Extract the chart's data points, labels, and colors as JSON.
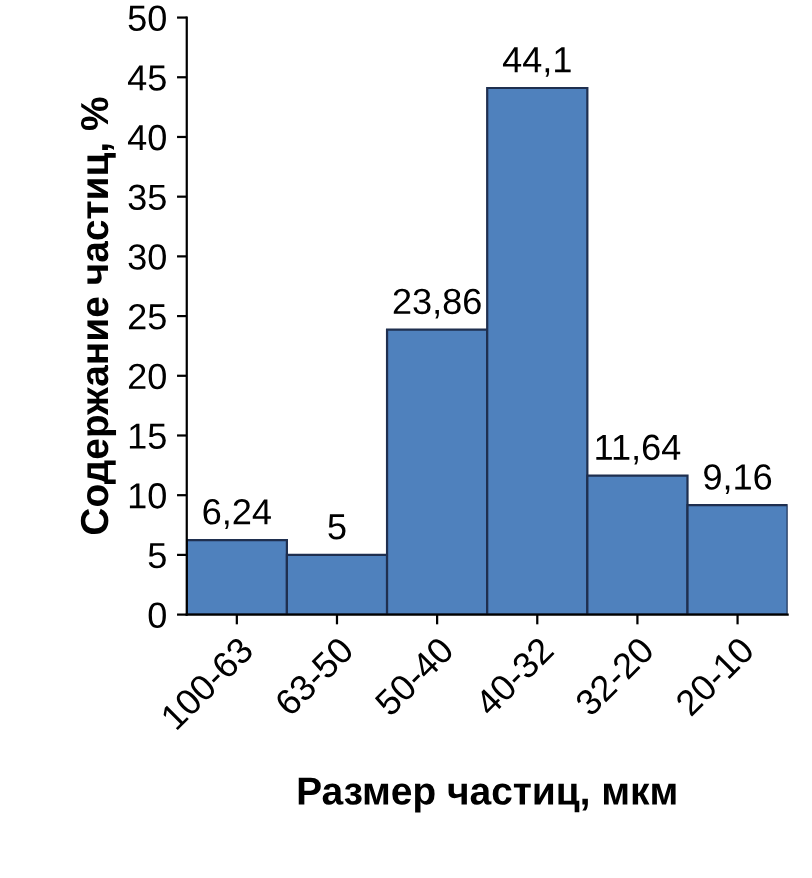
{
  "chart_data": {
    "type": "bar",
    "xlabel": "Размер частиц, мкм",
    "ylabel": "Содержание частиц, %",
    "categories": [
      "100-63",
      "63-50",
      "50-40",
      "40-32",
      "32-20",
      "20-10"
    ],
    "values": [
      6.24,
      5,
      23.86,
      44.1,
      11.64,
      9.16
    ],
    "value_labels": [
      "6,24",
      "5",
      "23,86",
      "44,1",
      "11,64",
      "9,16"
    ],
    "color": "#4f81bd",
    "ylim": [
      0,
      50
    ],
    "yticks": [
      0,
      5,
      10,
      15,
      20,
      25,
      30,
      35,
      40,
      45,
      50
    ],
    "grid": false
  }
}
